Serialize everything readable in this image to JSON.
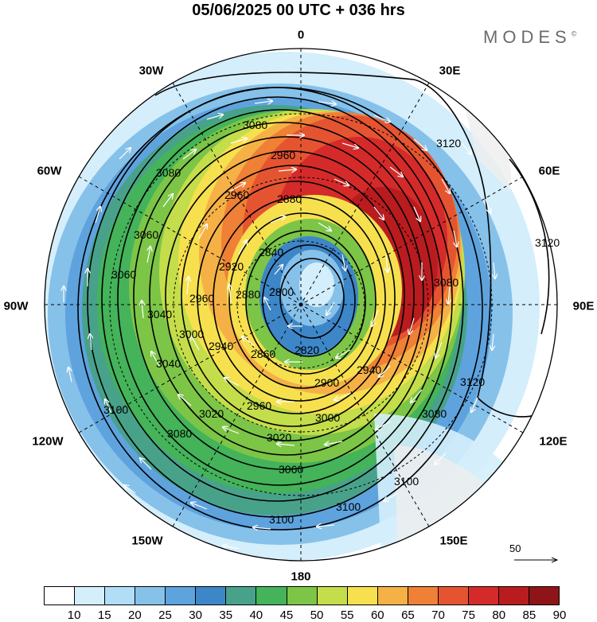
{
  "title": "05/06/2025  00 UTC  + 036 hrs",
  "logo": "MODES",
  "logo_mark": "©",
  "longitude_labels": [
    "0",
    "30E",
    "60E",
    "90E",
    "120E",
    "150E",
    "180",
    "150W",
    "120W",
    "90W",
    "60W",
    "30W"
  ],
  "contour_labels": [
    "3080",
    "3080",
    "2960",
    "2880",
    "2840",
    "3060",
    "3060",
    "3040",
    "2960",
    "2920",
    "2880",
    "2800",
    "3040",
    "3000",
    "2940",
    "2860",
    "2820",
    "2960",
    "2940",
    "2900",
    "2960",
    "3000",
    "3020",
    "3100",
    "3080",
    "3020",
    "3060",
    "3100",
    "3100",
    "3100",
    "3120",
    "3120",
    "3120",
    "3080",
    "3080"
  ],
  "reference_vector": {
    "label": "50"
  },
  "colorbar": {
    "ticks": [
      "10",
      "15",
      "20",
      "25",
      "30",
      "35",
      "40",
      "45",
      "50",
      "55",
      "60",
      "65",
      "70",
      "75",
      "80",
      "85",
      "90"
    ],
    "colors": [
      "#ffffff",
      "#d4eefb",
      "#b1ddf6",
      "#86c1ea",
      "#5ea3dd",
      "#3d86c8",
      "#48a28a",
      "#44b35a",
      "#7cc547",
      "#c4dd4a",
      "#f6e04e",
      "#f5b146",
      "#ef8035",
      "#e55431",
      "#d52a2a",
      "#b91c1f",
      "#8e1418"
    ]
  }
}
